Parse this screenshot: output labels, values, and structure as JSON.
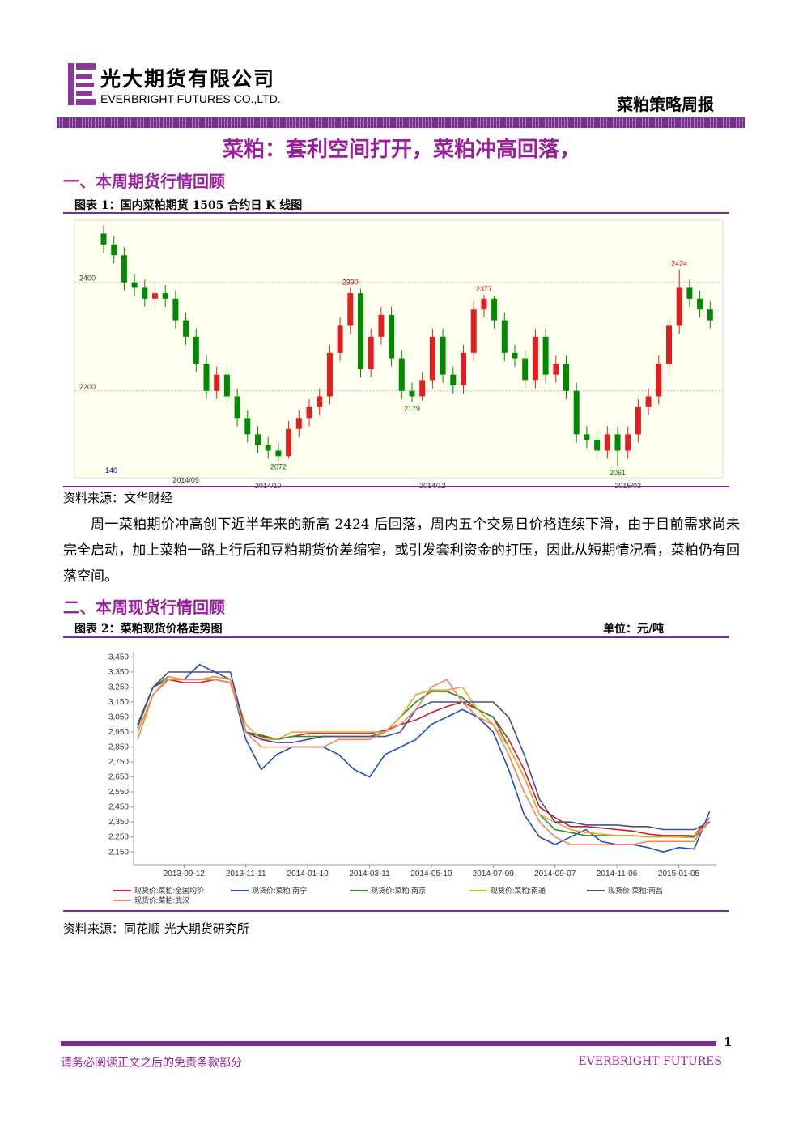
{
  "header": {
    "company_cn": "光大期货有限公司",
    "company_en": "EVERBRIGHT FUTURES CO.,LTD.",
    "report": "菜粕策略周报"
  },
  "title": "菜粕：套利空间打开，菜粕冲高回落，",
  "sections": [
    {
      "heading": "一、本周期货行情回顾",
      "source": "资料来源：文华财经",
      "paragraph": "周一菜粕期价冲高创下近半年来的新高 2424 后回落，周内五个交易日价格连续下滑，由于目前需求尚未完全启动，加上菜粕一路上行后和豆粕期货价差缩窄，或引发套利资金的打压，因此从短期情况看，菜粕仍有回落空间。"
    },
    {
      "heading": "二、本周现货行情回顾",
      "unit": "单位：元/吨",
      "source": "资料来源：同花顺 光大期货研究所"
    }
  ],
  "chart_data": [
    {
      "type": "candlestick",
      "title": "图表 1：国内菜粕期货 1505 合约日 K 线图",
      "categories": [
        null,
        null,
        null,
        null,
        null,
        null,
        null,
        null,
        "2014/09",
        null,
        null,
        null,
        null,
        null,
        null,
        null,
        "2014/10",
        null,
        null,
        null,
        null,
        null,
        null,
        null,
        null,
        null,
        null,
        null,
        null,
        null,
        null,
        null,
        "2014/12",
        null,
        null,
        null,
        null,
        null,
        null,
        null,
        null,
        null,
        null,
        null,
        null,
        null,
        null,
        null,
        null,
        null,
        null,
        "2015/02",
        null,
        null,
        null,
        null,
        null,
        null,
        null,
        null
      ],
      "open": [
        2490,
        2470,
        2450,
        2400,
        2390,
        2370,
        2380,
        2370,
        2330,
        2300,
        2250,
        2200,
        2230,
        2190,
        2150,
        2120,
        2100,
        2090,
        2080,
        2130,
        2150,
        2170,
        2190,
        2270,
        2320,
        2380,
        2240,
        2300,
        2340,
        2260,
        2200,
        2190,
        2220,
        2300,
        2230,
        2210,
        2270,
        2350,
        2370,
        2330,
        2270,
        2260,
        2220,
        2300,
        2230,
        2250,
        2200,
        2120,
        2110,
        2090,
        2120,
        2090,
        2120,
        2170,
        2190,
        2250,
        2320,
        2390,
        2370,
        2350
      ],
      "close": [
        2470,
        2450,
        2400,
        2390,
        2370,
        2380,
        2370,
        2330,
        2300,
        2250,
        2200,
        2230,
        2190,
        2150,
        2120,
        2100,
        2090,
        2080,
        2130,
        2150,
        2170,
        2190,
        2270,
        2320,
        2380,
        2240,
        2300,
        2340,
        2260,
        2200,
        2190,
        2220,
        2300,
        2230,
        2210,
        2270,
        2350,
        2370,
        2330,
        2270,
        2260,
        2220,
        2300,
        2230,
        2250,
        2200,
        2120,
        2110,
        2090,
        2120,
        2090,
        2120,
        2170,
        2190,
        2250,
        2320,
        2390,
        2370,
        2350,
        2330
      ],
      "high": [
        2505,
        2485,
        2465,
        2415,
        2405,
        2395,
        2395,
        2385,
        2345,
        2315,
        2265,
        2245,
        2245,
        2205,
        2165,
        2135,
        2115,
        2105,
        2145,
        2165,
        2185,
        2205,
        2285,
        2335,
        2390,
        2388,
        2315,
        2355,
        2355,
        2275,
        2215,
        2235,
        2315,
        2315,
        2245,
        2285,
        2365,
        2377,
        2375,
        2345,
        2285,
        2275,
        2315,
        2315,
        2265,
        2265,
        2215,
        2135,
        2125,
        2135,
        2135,
        2135,
        2185,
        2205,
        2265,
        2335,
        2424,
        2405,
        2385,
        2365
      ],
      "low": [
        2455,
        2435,
        2385,
        2375,
        2355,
        2355,
        2355,
        2315,
        2285,
        2235,
        2185,
        2185,
        2175,
        2135,
        2105,
        2085,
        2075,
        2072,
        2075,
        2115,
        2135,
        2155,
        2175,
        2255,
        2305,
        2225,
        2225,
        2285,
        2245,
        2185,
        2179,
        2182,
        2205,
        2215,
        2195,
        2195,
        2255,
        2335,
        2315,
        2255,
        2245,
        2205,
        2205,
        2215,
        2215,
        2185,
        2105,
        2095,
        2075,
        2075,
        2061,
        2075,
        2105,
        2155,
        2175,
        2235,
        2305,
        2355,
        2335,
        2315
      ],
      "up_color": "#e02020",
      "down_color": "#008a00",
      "ylim": [
        2040,
        2510
      ],
      "yticks": [
        2200,
        2400
      ],
      "grid": true,
      "annotations": [
        2390,
        2377,
        2424,
        2179,
        2072,
        2061
      ],
      "volume_label": "140"
    },
    {
      "type": "line",
      "title": "图表 2：菜粕现货价格走势图",
      "categories": [
        null,
        null,
        null,
        "2013-09-12",
        null,
        null,
        null,
        "2013-11-11",
        null,
        null,
        null,
        "2014-01-10",
        null,
        null,
        null,
        "2014-03-11",
        null,
        null,
        null,
        "2014-05-10",
        null,
        null,
        null,
        "2014-07-09",
        null,
        null,
        null,
        "2014-09-07",
        null,
        null,
        null,
        "2014-11-06",
        null,
        null,
        null,
        "2015-01-05",
        null,
        null
      ],
      "ylim": [
        2065,
        3485
      ],
      "yticks": [
        {
          "value": 2150,
          "label": "2,150"
        },
        {
          "value": 2250,
          "label": "2,250"
        },
        {
          "value": 2350,
          "label": "2,350"
        },
        {
          "value": 2450,
          "label": "2,450"
        },
        {
          "value": 2550,
          "label": "2,550"
        },
        {
          "value": 2650,
          "label": "2,650"
        },
        {
          "value": 2750,
          "label": "2,750"
        },
        {
          "value": 2850,
          "label": "2,850"
        },
        {
          "value": 2950,
          "label": "2,950"
        },
        {
          "value": 3050,
          "label": "3,050"
        },
        {
          "value": 3150,
          "label": "3,150"
        },
        {
          "value": 3250,
          "label": "3,250"
        },
        {
          "value": 3350,
          "label": "3,350"
        },
        {
          "value": 3450,
          "label": "3,450"
        }
      ],
      "series": [
        {
          "name": "现货价:菜粕:全国均价",
          "color": "#c8202a",
          "values": [
            2950,
            3200,
            3300,
            3280,
            3280,
            3300,
            3280,
            2950,
            2920,
            2900,
            2920,
            2940,
            2940,
            2940,
            2940,
            2940,
            2960,
            3000,
            3030,
            3080,
            3120,
            3150,
            3100,
            3050,
            2900,
            2700,
            2450,
            2380,
            2320,
            2320,
            2310,
            2300,
            2290,
            2270,
            2260,
            2260,
            2260,
            2380
          ]
        },
        {
          "name": "现货价:菜粕:南宁",
          "color": "#1e4fc0",
          "values": [
            3000,
            3250,
            3300,
            3300,
            3400,
            3350,
            3300,
            2900,
            2700,
            2800,
            2850,
            2850,
            2850,
            2800,
            2700,
            2650,
            2800,
            2850,
            2900,
            3000,
            3050,
            3100,
            3050,
            2950,
            2700,
            2400,
            2250,
            2200,
            2250,
            2300,
            2220,
            2200,
            2200,
            2180,
            2150,
            2180,
            2170,
            2420
          ]
        },
        {
          "name": "现货价:菜粕:南京",
          "color": "#2e8b2e",
          "values": [
            2980,
            3250,
            3320,
            3300,
            3300,
            3320,
            3300,
            2950,
            2930,
            2900,
            2920,
            2920,
            2920,
            2920,
            2920,
            2920,
            2950,
            3050,
            3150,
            3220,
            3220,
            3180,
            3100,
            3050,
            2850,
            2650,
            2400,
            2300,
            2280,
            2260,
            2260,
            2260,
            2260,
            2250,
            2250,
            2250,
            2250,
            2350
          ]
        },
        {
          "name": "现货价:菜粕:南通",
          "color": "#f0a530",
          "values": [
            2950,
            3200,
            3320,
            3300,
            3300,
            3320,
            3300,
            3000,
            2900,
            2900,
            2950,
            2950,
            2950,
            2950,
            2950,
            2950,
            2950,
            3050,
            3200,
            3230,
            3230,
            3250,
            3100,
            3000,
            2850,
            2650,
            2400,
            2350,
            2300,
            2280,
            2270,
            2260,
            2260,
            2250,
            2250,
            2250,
            2260,
            2350
          ]
        },
        {
          "name": "现货价:菜粕:南昌",
          "color": "#4b4a8c",
          "values": [
            3000,
            3250,
            3350,
            3350,
            3350,
            3350,
            3350,
            2950,
            2900,
            2880,
            2880,
            2900,
            2920,
            2920,
            2920,
            2920,
            2920,
            2950,
            3100,
            3150,
            3150,
            3150,
            3150,
            3150,
            3050,
            2800,
            2500,
            2350,
            2350,
            2330,
            2330,
            2330,
            2320,
            2320,
            2300,
            2300,
            2300,
            2350
          ]
        },
        {
          "name": "现货价:菜粕:武汉",
          "color": "#f08860",
          "values": [
            2900,
            3200,
            3300,
            3300,
            3300,
            3300,
            3280,
            2950,
            2850,
            2850,
            2850,
            2850,
            2850,
            2900,
            2900,
            2900,
            2950,
            3000,
            3100,
            3250,
            3300,
            3150,
            3050,
            3000,
            2800,
            2550,
            2350,
            2250,
            2200,
            2200,
            2200,
            2200,
            2200,
            2220,
            2220,
            2220,
            2220,
            2380
          ]
        }
      ]
    }
  ],
  "footer": {
    "page": "1",
    "disclaimer": "请务必阅读正文之后的免责条款部分",
    "brand": "EVERBRIGHT FUTURES"
  }
}
